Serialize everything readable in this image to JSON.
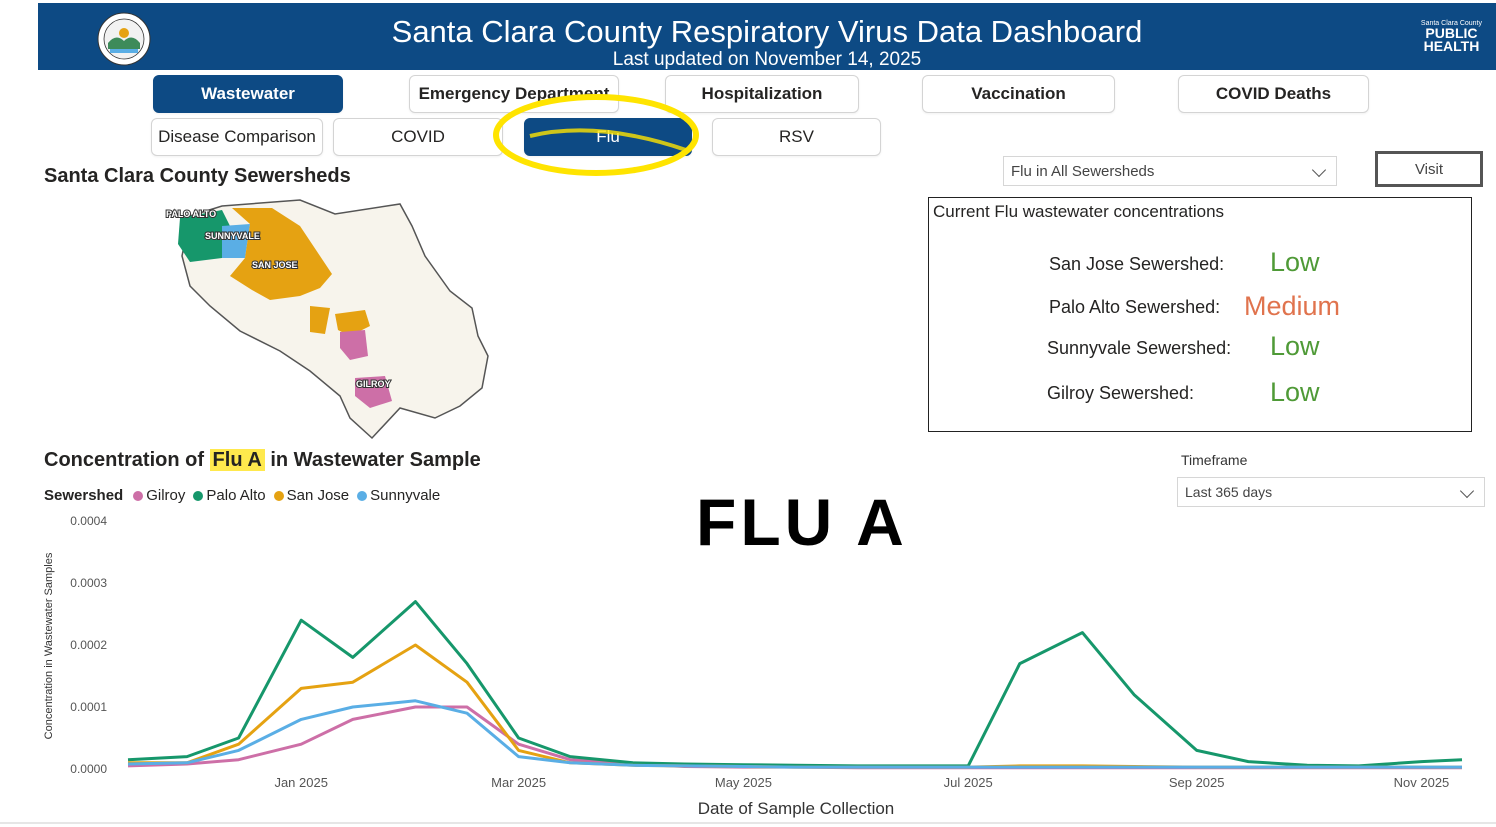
{
  "header": {
    "title": "Santa Clara County Respiratory Virus Data Dashboard",
    "subtitle": "Last updated on November 14, 2025",
    "logo_small": "Santa Clara County",
    "logo_line1": "PUBLIC",
    "logo_line2": "HEALTH",
    "seal_icon": "county-seal-icon",
    "brand_color": "#0d4a84"
  },
  "tabs_row1": [
    "Wastewater",
    "Emergency Department",
    "Hospitalization",
    "Vaccination",
    "COVID Deaths"
  ],
  "tabs_row2": [
    "Disease Comparison",
    "COVID",
    "Flu",
    "RSV"
  ],
  "active_tabs": [
    "Wastewater",
    "Flu"
  ],
  "map": {
    "title": "Santa Clara County Sewersheds",
    "labels": [
      "PALO ALTO",
      "SUNNYVALE",
      "SAN JOSE",
      "GILROY"
    ]
  },
  "filter": {
    "selected": "Flu in All Sewersheds",
    "visit_label": "Visit"
  },
  "current_levels": {
    "title": "Current Flu wastewater concentrations",
    "rows": [
      {
        "label": "San Jose Sewershed:",
        "level": "Low",
        "color": "#4f9a37"
      },
      {
        "label": "Palo Alto Sewershed:",
        "level": "Medium",
        "color": "#e0734d"
      },
      {
        "label": "Sunnyvale Sewershed:",
        "level": "Low",
        "color": "#4f9a37"
      },
      {
        "label": "Gilroy Sewershed:",
        "level": "Low",
        "color": "#4f9a37"
      }
    ]
  },
  "timeframe": {
    "label": "Timeframe",
    "selected": "Last 365 days"
  },
  "overlay_text": "FLU A",
  "chart_section": {
    "title_pre": "Concentration of ",
    "title_hl": "Flu A",
    "title_post": " in Wastewater Sample"
  },
  "chart_data": {
    "type": "line",
    "legend_title": "Sewershed",
    "xlabel": "Date of Sample Collection",
    "ylabel": "Concentration in Wastewater Samples",
    "x_ticks": [
      "Jan 2025",
      "Mar 2025",
      "May 2025",
      "Jul 2025",
      "Sep 2025",
      "Nov 2025"
    ],
    "y_ticks": [
      "0.0000",
      "0.0001",
      "0.0002",
      "0.0003",
      "0.0004"
    ],
    "ylim": [
      0,
      0.0004
    ],
    "x_dates": [
      "2024-11-15",
      "2024-12-01",
      "2024-12-15",
      "2025-01-01",
      "2025-01-15",
      "2025-02-01",
      "2025-02-15",
      "2025-03-01",
      "2025-03-15",
      "2025-04-01",
      "2025-04-15",
      "2025-05-01",
      "2025-05-15",
      "2025-06-01",
      "2025-06-15",
      "2025-07-01",
      "2025-07-15",
      "2025-08-01",
      "2025-08-15",
      "2025-09-01",
      "2025-09-15",
      "2025-10-01",
      "2025-10-15",
      "2025-11-01",
      "2025-11-12"
    ],
    "series": [
      {
        "name": "Gilroy",
        "color": "#cd6fa7",
        "values": [
          5e-06,
          8e-06,
          1.5e-05,
          4e-05,
          8e-05,
          0.0001,
          0.0001,
          4e-05,
          1.5e-05,
          8e-06,
          4e-06,
          3e-06,
          3e-06,
          2e-06,
          2e-06,
          2e-06,
          2e-06,
          2e-06,
          2e-06,
          2e-06,
          2e-06,
          2e-06,
          2e-06,
          2e-06,
          2e-06
        ]
      },
      {
        "name": "Palo Alto",
        "color": "#16976b",
        "values": [
          1.5e-05,
          2e-05,
          5e-05,
          0.00024,
          0.00018,
          0.00027,
          0.00017,
          5e-05,
          2e-05,
          1e-05,
          8e-06,
          7e-06,
          6e-06,
          5e-06,
          5e-06,
          5e-06,
          0.00017,
          0.00022,
          0.00012,
          3e-05,
          1.2e-05,
          6e-06,
          5e-06,
          1.2e-05,
          1.5e-05
        ]
      },
      {
        "name": "San Jose",
        "color": "#e5a212",
        "values": [
          1e-05,
          1e-05,
          4e-05,
          0.00013,
          0.00014,
          0.0002,
          0.00014,
          3e-05,
          1e-05,
          6e-06,
          5e-06,
          4e-06,
          3e-06,
          3e-06,
          3e-06,
          3e-06,
          5e-06,
          5e-06,
          4e-06,
          3e-06,
          3e-06,
          3e-06,
          3e-06,
          3e-06,
          3e-06
        ]
      },
      {
        "name": "Sunnyvale",
        "color": "#5aaee5",
        "values": [
          8e-06,
          1e-05,
          3e-05,
          8e-05,
          0.0001,
          0.00011,
          9e-05,
          2e-05,
          1e-05,
          6e-06,
          5e-06,
          4e-06,
          3e-06,
          3e-06,
          3e-06,
          3e-06,
          3e-06,
          3e-06,
          3e-06,
          3e-06,
          3e-06,
          3e-06,
          3e-06,
          3e-06,
          3e-06
        ]
      }
    ]
  }
}
